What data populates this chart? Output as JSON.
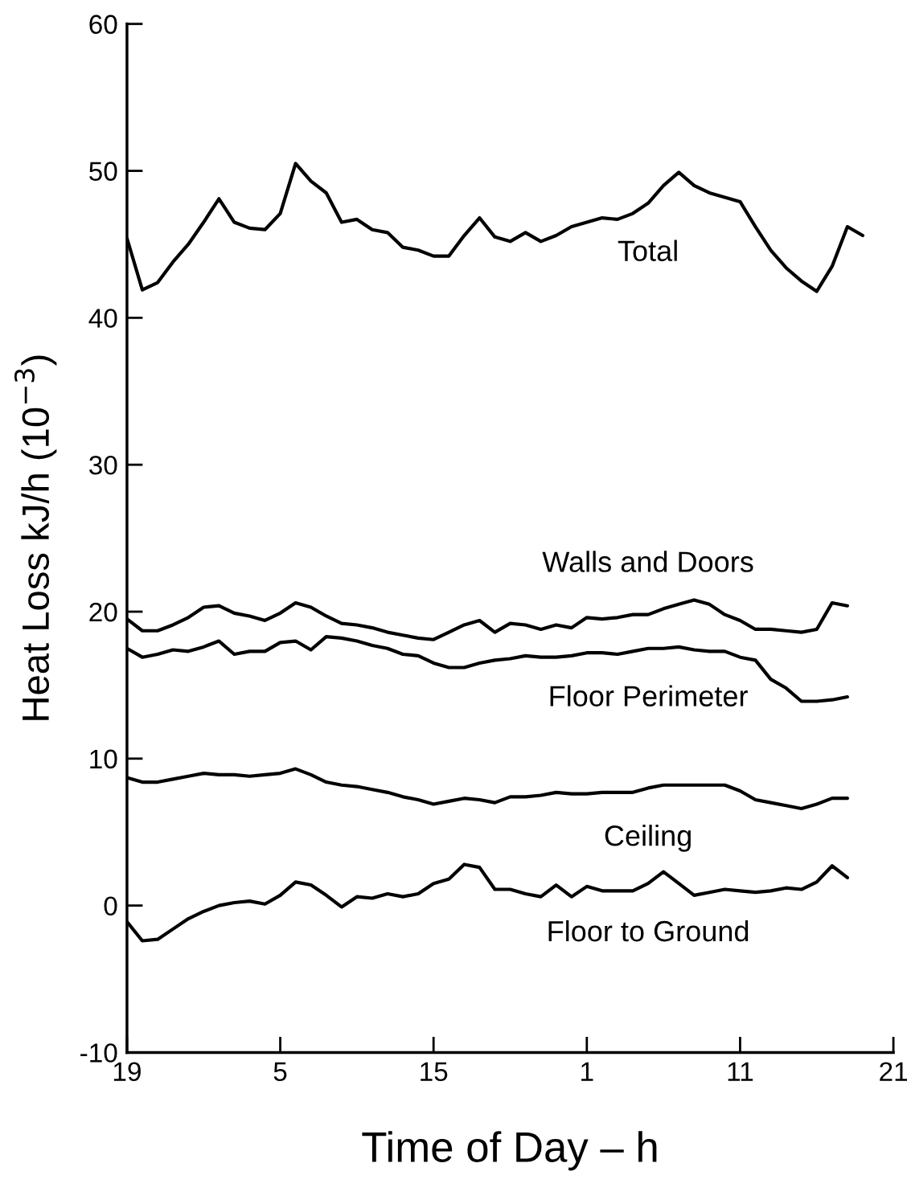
{
  "chart_data": {
    "type": "line",
    "xlabel": "Time of Day – h",
    "ylabel": "Heat Loss kJ/h (10$^{−3}$)",
    "categories": [
      "19",
      null,
      null,
      null,
      null,
      null,
      null,
      null,
      null,
      null,
      "5",
      null,
      null,
      null,
      null,
      null,
      null,
      null,
      null,
      null,
      "15",
      null,
      null,
      null,
      null,
      null,
      null,
      null,
      null,
      null,
      "1",
      null,
      null,
      null,
      null,
      null,
      null,
      null,
      null,
      null,
      "11",
      null,
      null,
      null,
      null,
      null,
      null,
      null,
      null,
      null,
      "21"
    ],
    "ylim": [
      -10,
      60
    ],
    "yticks": [
      {
        "value": -10,
        "label": "-10"
      },
      0,
      10,
      20,
      30,
      40,
      50,
      60
    ],
    "grid": false,
    "legend": false,
    "marker": "none",
    "line_style": "solid",
    "series": [
      {
        "name": "Total",
        "color": "#000000",
        "values": [
          45.4,
          41.9,
          42.4,
          43.8,
          45.0,
          46.5,
          48.1,
          46.5,
          46.1,
          46.0,
          47.1,
          50.5,
          49.3,
          48.5,
          46.5,
          46.7,
          46.0,
          45.8,
          44.8,
          44.6,
          44.2,
          44.2,
          45.6,
          46.8,
          45.5,
          45.2,
          45.8,
          45.2,
          45.6,
          46.2,
          46.5,
          46.8,
          46.7,
          47.1,
          47.8,
          49.0,
          49.9,
          49.0,
          48.5,
          48.2,
          47.9,
          46.2,
          44.6,
          43.4,
          42.5,
          41.8,
          43.5,
          46.2,
          45.6,
          null,
          null
        ]
      },
      {
        "name": "Walls and Doors",
        "color": "#000000",
        "values": [
          19.5,
          18.7,
          18.7,
          19.1,
          19.6,
          20.3,
          20.4,
          19.9,
          19.7,
          19.4,
          19.9,
          20.6,
          20.3,
          19.7,
          19.2,
          19.1,
          18.9,
          18.6,
          18.4,
          18.2,
          18.1,
          18.6,
          19.1,
          19.4,
          18.6,
          19.2,
          19.1,
          18.8,
          19.1,
          18.9,
          19.6,
          19.5,
          19.6,
          19.8,
          19.8,
          20.2,
          20.5,
          20.8,
          20.5,
          19.8,
          19.4,
          18.8,
          18.8,
          18.7,
          18.6,
          18.8,
          20.6,
          20.4,
          null,
          null,
          null
        ]
      },
      {
        "name": "Floor Perimeter",
        "color": "#000000",
        "values": [
          17.5,
          16.9,
          17.1,
          17.4,
          17.3,
          17.6,
          18.0,
          17.1,
          17.3,
          17.3,
          17.9,
          18.0,
          17.4,
          18.3,
          18.2,
          18.0,
          17.7,
          17.5,
          17.1,
          17.0,
          16.5,
          16.2,
          16.2,
          16.5,
          16.7,
          16.8,
          17.0,
          16.9,
          16.9,
          17.0,
          17.2,
          17.2,
          17.1,
          17.3,
          17.5,
          17.5,
          17.6,
          17.4,
          17.3,
          17.3,
          16.9,
          16.7,
          15.4,
          14.8,
          13.9,
          13.9,
          14.0,
          14.2,
          null,
          null,
          null
        ]
      },
      {
        "name": "Ceiling",
        "color": "#000000",
        "values": [
          8.7,
          8.4,
          8.4,
          8.6,
          8.8,
          9.0,
          8.9,
          8.9,
          8.8,
          8.9,
          9.0,
          9.3,
          8.9,
          8.4,
          8.2,
          8.1,
          7.9,
          7.7,
          7.4,
          7.2,
          6.9,
          7.1,
          7.3,
          7.2,
          7.0,
          7.4,
          7.4,
          7.5,
          7.7,
          7.6,
          7.6,
          7.7,
          7.7,
          7.7,
          8.0,
          8.2,
          8.2,
          8.2,
          8.2,
          8.2,
          7.8,
          7.2,
          7.0,
          6.8,
          6.6,
          6.9,
          7.3,
          7.3,
          null,
          null,
          null
        ]
      },
      {
        "name": "Floor to Ground",
        "color": "#000000",
        "values": [
          -1.1,
          -2.4,
          -2.3,
          -1.6,
          -0.9,
          -0.4,
          0.0,
          0.2,
          0.3,
          0.1,
          0.7,
          1.6,
          1.4,
          0.7,
          -0.1,
          0.6,
          0.5,
          0.8,
          0.6,
          0.8,
          1.5,
          1.8,
          2.8,
          2.6,
          1.1,
          1.1,
          0.8,
          0.6,
          1.4,
          0.6,
          1.3,
          1.0,
          1.0,
          1.0,
          1.5,
          2.3,
          1.5,
          0.7,
          0.9,
          1.1,
          1.0,
          0.9,
          1.0,
          1.2,
          1.1,
          1.6,
          2.7,
          1.9,
          null,
          null,
          null
        ]
      }
    ]
  }
}
